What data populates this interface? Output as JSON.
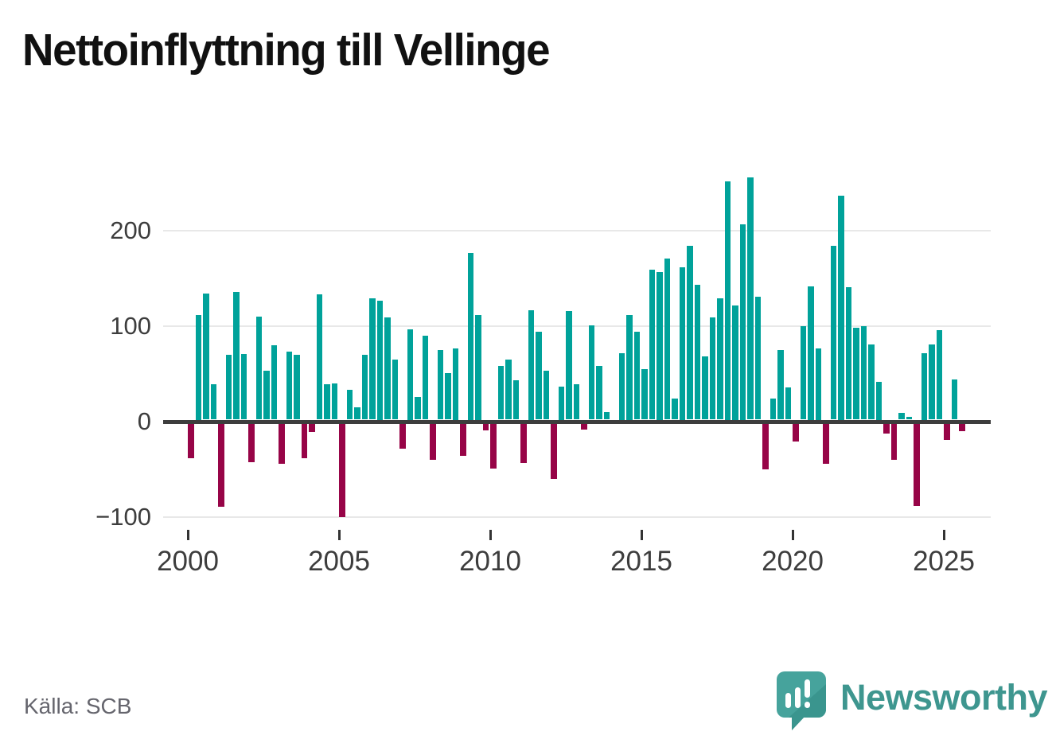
{
  "title": "Nettoinflyttning till Vellinge",
  "source": "Källa: SCB",
  "logo": {
    "wordmark": "Newsworthy"
  },
  "colors": {
    "positive": "#00a29a",
    "negative": "#970447",
    "zero_line": "#3d3d3d",
    "gridline": "#e8e8e8",
    "axis_text": "#3d3d3d",
    "logo_teal": "#46a39c",
    "logo_teal_dark": "#3a958e"
  },
  "chart_data": {
    "type": "bar",
    "title": "Nettoinflyttning till Vellinge",
    "granularity": "quarterly",
    "first_period": "2000 Q1",
    "last_period": "2025 Q3",
    "grid": "horizontal",
    "ylim": [
      -110,
      270
    ],
    "y_ticks": [
      {
        "label": "200",
        "value": 200
      },
      {
        "label": "100",
        "value": 100
      },
      {
        "label": "0",
        "value": 0
      },
      {
        "label": "−100",
        "value": -100
      }
    ],
    "x_ticks": [
      {
        "label": "2000",
        "bar_index": 0
      },
      {
        "label": "2005",
        "bar_index": 20
      },
      {
        "label": "2010",
        "bar_index": 40
      },
      {
        "label": "2015",
        "bar_index": 60
      },
      {
        "label": "2020",
        "bar_index": 80
      },
      {
        "label": "2025",
        "bar_index": 100
      }
    ],
    "values": [
      -36,
      110,
      132,
      37,
      -87,
      68,
      134,
      69,
      -40,
      108,
      51,
      78,
      -42,
      71,
      68,
      -36,
      -9,
      131,
      37,
      38,
      -98,
      31,
      13,
      68,
      127,
      125,
      107,
      63,
      -26,
      95,
      24,
      88,
      -38,
      73,
      49,
      75,
      -34,
      175,
      110,
      -7,
      -47,
      56,
      63,
      41,
      -41,
      115,
      92,
      51,
      -58,
      35,
      114,
      37,
      -6,
      99,
      56,
      8,
      0,
      70,
      110,
      92,
      53,
      157,
      155,
      169,
      22,
      160,
      182,
      141,
      66,
      107,
      127,
      250,
      120,
      205,
      254,
      129,
      -48,
      22,
      73,
      34,
      -19,
      98,
      140,
      75,
      -42,
      182,
      235,
      139,
      96,
      98,
      79,
      40,
      -10,
      -38,
      7,
      3,
      -86,
      70,
      79,
      94,
      -17,
      42,
      -8
    ]
  }
}
